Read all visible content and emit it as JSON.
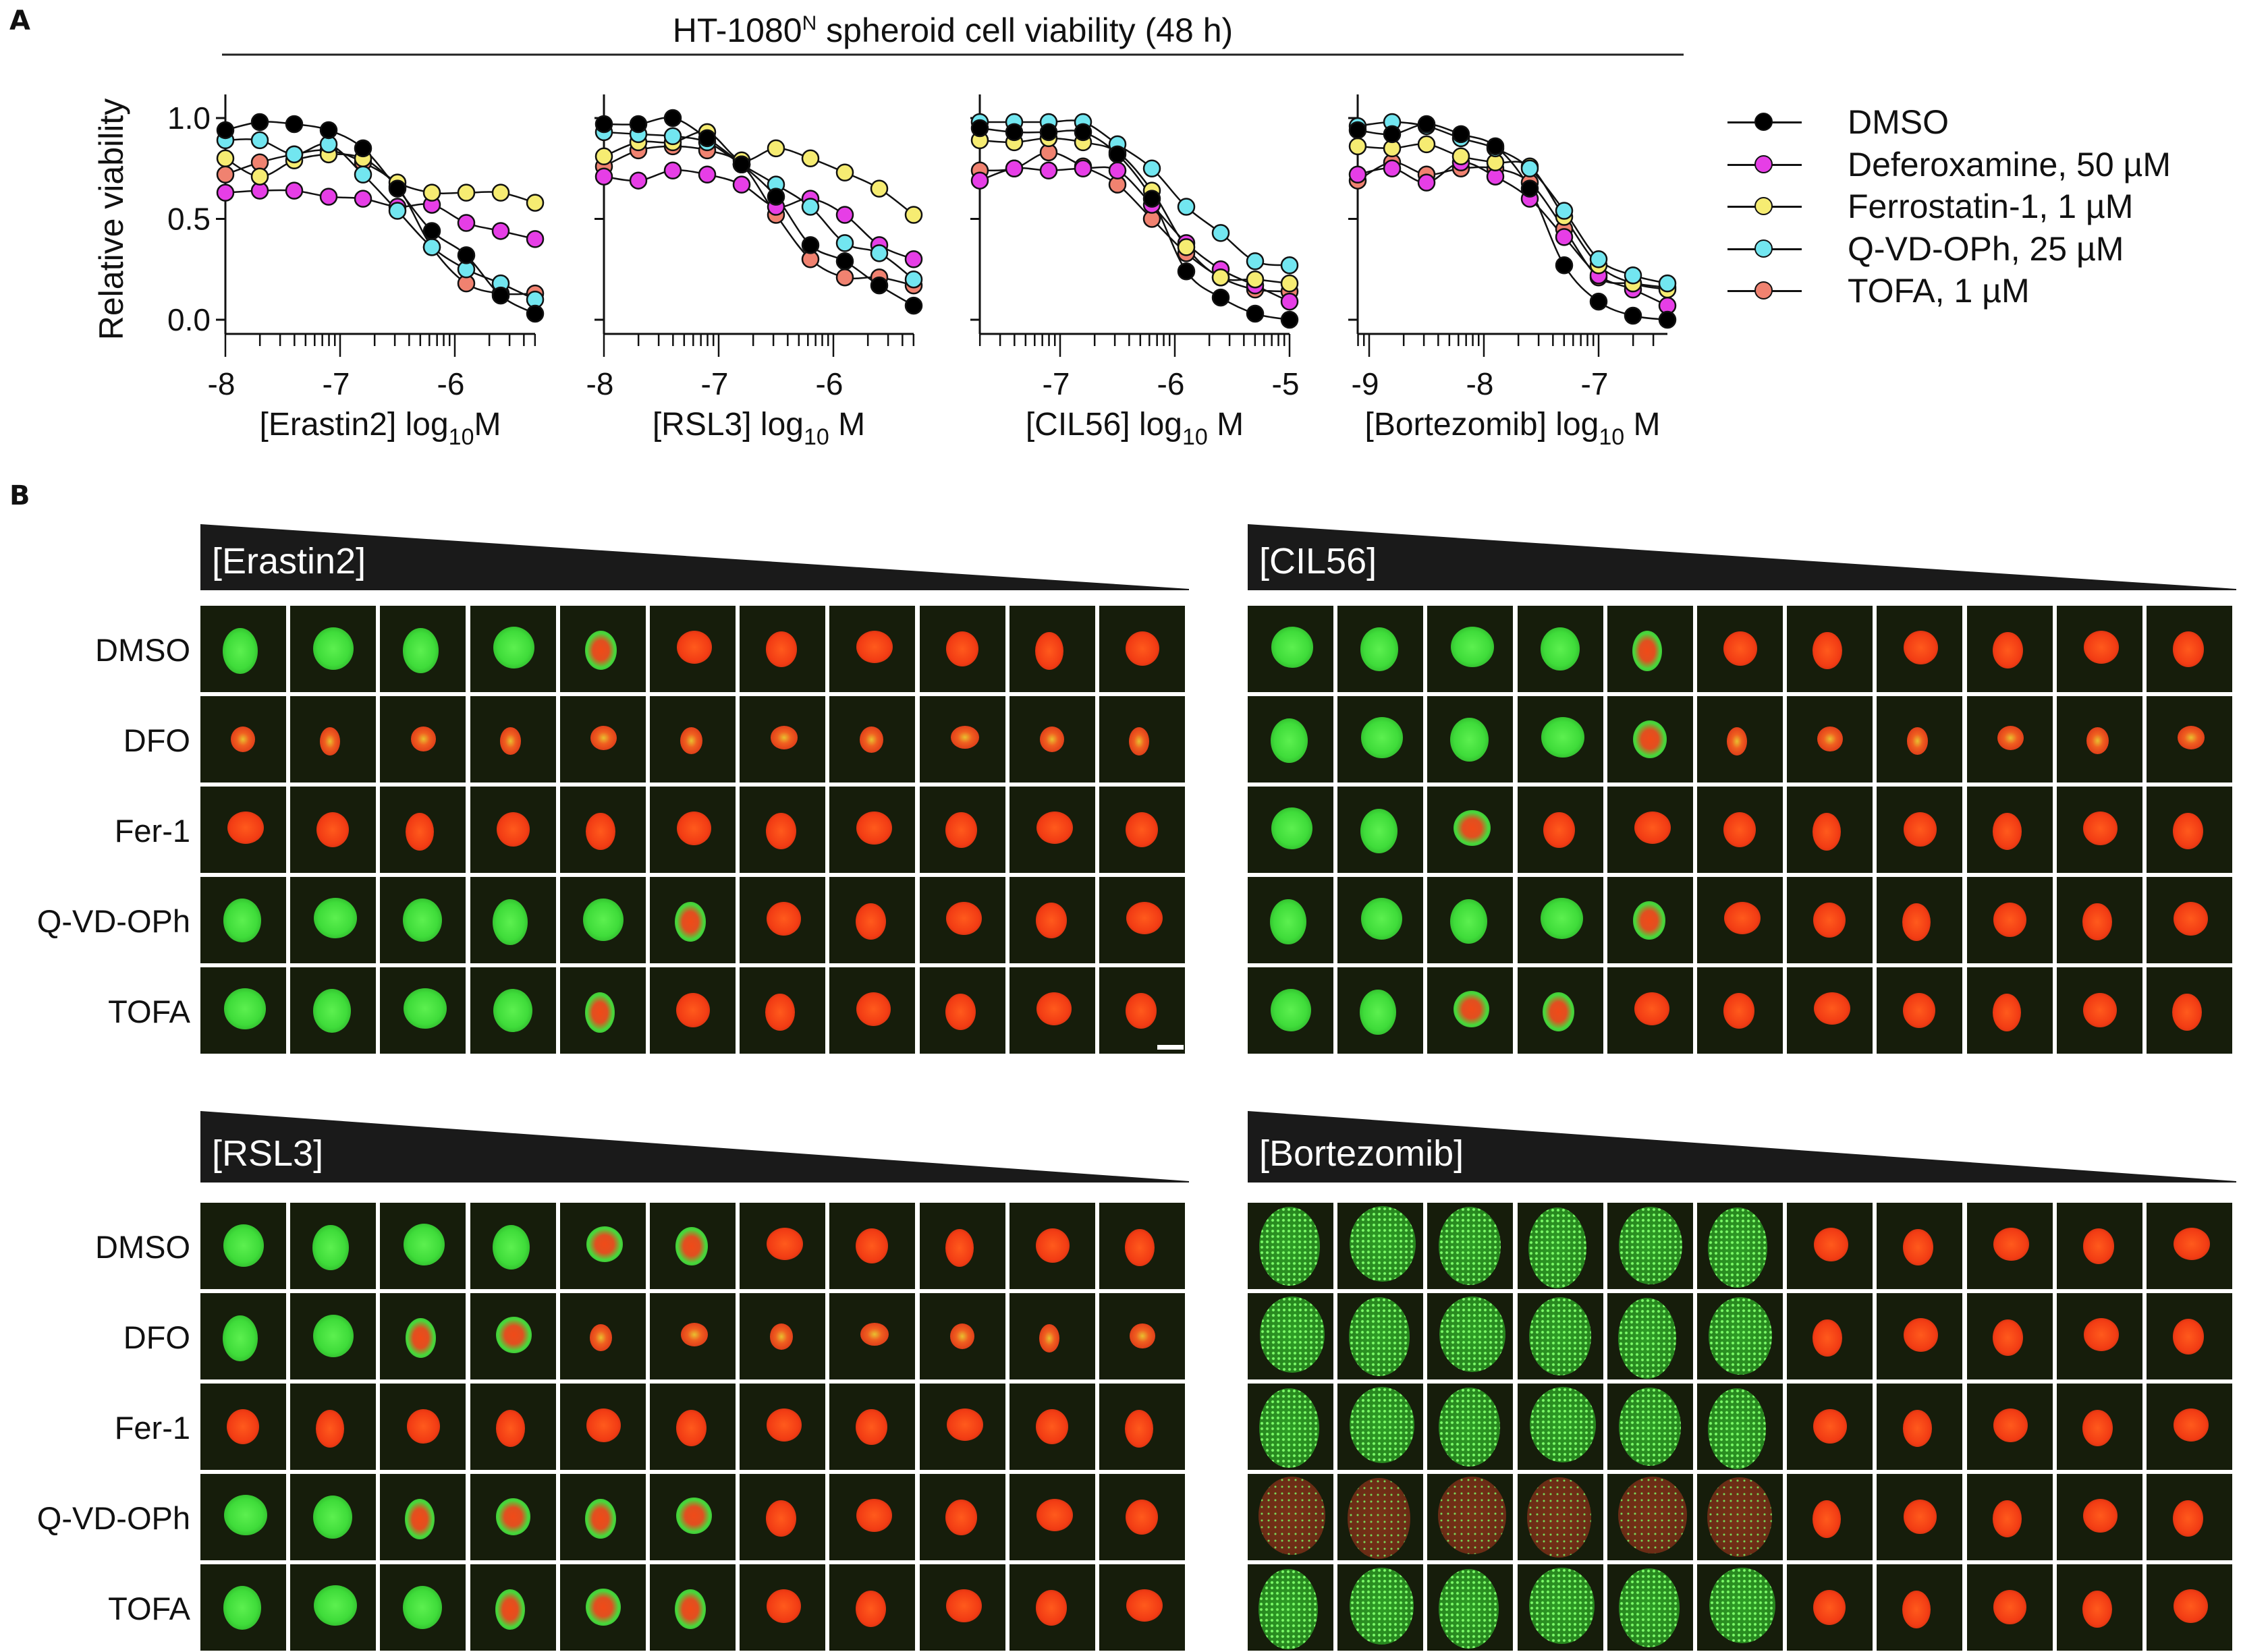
{
  "panel_a": {
    "label": "A",
    "title": {
      "pre": "HT-1080",
      "sup": "N",
      "post": " spheroid cell viability (48 h)"
    },
    "ylabel": "Relative viability",
    "yticks": [
      "0.0",
      "0.5",
      "1.0"
    ]
  },
  "legend": [
    {
      "name": "DMSO",
      "color": "#000000"
    },
    {
      "name": "Deferoxamine, 50 µM",
      "color": "#e63ee6"
    },
    {
      "name": "Ferrostatin-1, 1 µM",
      "color": "#f6ec72"
    },
    {
      "name": "Q-VD-OPh, 25 µM",
      "color": "#72e6f0"
    },
    {
      "name": "TOFA, 1 µM",
      "color": "#f08270"
    }
  ],
  "chart_data": [
    {
      "type": "line",
      "xlabel": {
        "main": "[Erastin2] log",
        "sub": "10",
        "unit": "M"
      },
      "ylabel": "Relative viability",
      "xticks": [
        "-8",
        "-7",
        "-6"
      ],
      "ylim": [
        -0.1,
        1.1
      ],
      "x": [
        -8,
        -7.7,
        -7.4,
        -7.1,
        -6.8,
        -6.5,
        -6.2,
        -5.9,
        -5.6,
        -5.3
      ],
      "series": [
        {
          "name": "DMSO",
          "values": [
            0.94,
            0.98,
            0.97,
            0.94,
            0.85,
            0.65,
            0.44,
            0.32,
            0.12,
            0.03
          ]
        },
        {
          "name": "Deferoxamine, 50 µM",
          "values": [
            0.63,
            0.64,
            0.64,
            0.61,
            0.6,
            0.56,
            0.57,
            0.48,
            0.44,
            0.4
          ]
        },
        {
          "name": "Ferrostatin-1, 1 µM",
          "values": [
            0.8,
            0.71,
            0.79,
            0.82,
            0.8,
            0.68,
            0.63,
            0.63,
            0.63,
            0.58
          ]
        },
        {
          "name": "Q-VD-OPh, 25 µM",
          "values": [
            0.89,
            0.89,
            0.82,
            0.87,
            0.72,
            0.54,
            0.36,
            0.25,
            0.18,
            0.1
          ]
        },
        {
          "name": "TOFA, 1 µM",
          "values": [
            0.72,
            0.78,
            0.82,
            0.84,
            0.78,
            0.66,
            0.36,
            0.18,
            0.13,
            0.13
          ]
        }
      ]
    },
    {
      "type": "line",
      "xlabel": {
        "main": "[RSL3] log",
        "sub": "10",
        "unit": " M"
      },
      "xticks": [
        "-8",
        "-7",
        "-6"
      ],
      "ylim": [
        -0.1,
        1.1
      ],
      "x": [
        -8,
        -7.7,
        -7.4,
        -7.1,
        -6.8,
        -6.5,
        -6.2,
        -5.9,
        -5.6,
        -5.3
      ],
      "series": [
        {
          "name": "DMSO",
          "values": [
            0.97,
            0.97,
            1.0,
            0.9,
            0.77,
            0.61,
            0.37,
            0.29,
            0.17,
            0.07
          ]
        },
        {
          "name": "Deferoxamine, 50 µM",
          "values": [
            0.71,
            0.69,
            0.74,
            0.72,
            0.67,
            0.56,
            0.6,
            0.52,
            0.37,
            0.3
          ]
        },
        {
          "name": "Ferrostatin-1, 1 µM",
          "values": [
            0.81,
            0.88,
            0.88,
            0.93,
            0.79,
            0.85,
            0.8,
            0.73,
            0.65,
            0.52
          ]
        },
        {
          "name": "Q-VD-OPh, 25 µM",
          "values": [
            0.93,
            0.92,
            0.91,
            0.88,
            0.77,
            0.67,
            0.56,
            0.38,
            0.33,
            0.2
          ]
        },
        {
          "name": "TOFA, 1 µM",
          "values": [
            0.76,
            0.84,
            0.86,
            0.84,
            0.77,
            0.52,
            0.3,
            0.21,
            0.21,
            0.17
          ]
        }
      ]
    },
    {
      "type": "line",
      "xlabel": {
        "main": "[CIL56] log",
        "sub": "10",
        "unit": " M"
      },
      "xticks": [
        "-7",
        "-6",
        "-5"
      ],
      "ylim": [
        -0.1,
        1.1
      ],
      "x": [
        -7.7,
        -7.4,
        -7.1,
        -6.8,
        -6.5,
        -6.2,
        -5.9,
        -5.6,
        -5.3,
        -5.0
      ],
      "series": [
        {
          "name": "DMSO",
          "values": [
            0.95,
            0.93,
            0.93,
            0.93,
            0.82,
            0.6,
            0.24,
            0.11,
            0.03,
            0.0
          ]
        },
        {
          "name": "Deferoxamine, 50 µM",
          "values": [
            0.69,
            0.75,
            0.74,
            0.75,
            0.74,
            0.57,
            0.38,
            0.25,
            0.17,
            0.09
          ]
        },
        {
          "name": "Ferrostatin-1, 1 µM",
          "values": [
            0.89,
            0.88,
            0.9,
            0.88,
            0.83,
            0.64,
            0.36,
            0.21,
            0.2,
            0.18
          ]
        },
        {
          "name": "Q-VD-OPh, 25 µM",
          "values": [
            0.98,
            0.98,
            0.98,
            0.98,
            0.87,
            0.75,
            0.56,
            0.43,
            0.29,
            0.27
          ]
        },
        {
          "name": "TOFA, 1 µM",
          "values": [
            0.74,
            0.75,
            0.83,
            0.76,
            0.67,
            0.5,
            0.33,
            0.21,
            0.15,
            0.14
          ]
        }
      ]
    },
    {
      "type": "line",
      "xlabel": {
        "main": "[Bortezomib] log",
        "sub": "10",
        "unit": " M"
      },
      "xticks": [
        "-9",
        "-8",
        "-7"
      ],
      "ylim": [
        -0.1,
        1.1
      ],
      "x": [
        -9.1,
        -8.8,
        -8.5,
        -8.2,
        -7.9,
        -7.6,
        -7.3,
        -7.0,
        -6.7,
        -6.4
      ],
      "series": [
        {
          "name": "DMSO",
          "values": [
            0.94,
            0.92,
            0.97,
            0.92,
            0.86,
            0.65,
            0.27,
            0.09,
            0.02,
            0.0
          ]
        },
        {
          "name": "Deferoxamine, 50 µM",
          "values": [
            0.72,
            0.75,
            0.68,
            0.78,
            0.71,
            0.6,
            0.41,
            0.22,
            0.15,
            0.07
          ]
        },
        {
          "name": "Ferrostatin-1, 1 µM",
          "values": [
            0.86,
            0.85,
            0.87,
            0.81,
            0.78,
            0.76,
            0.51,
            0.27,
            0.18,
            0.15
          ]
        },
        {
          "name": "Q-VD-OPh, 25 µM",
          "values": [
            0.96,
            0.98,
            0.96,
            0.9,
            0.85,
            0.75,
            0.54,
            0.3,
            0.22,
            0.18
          ]
        },
        {
          "name": "TOFA, 1 µM",
          "values": [
            0.69,
            0.78,
            0.72,
            0.75,
            0.75,
            0.68,
            0.45,
            0.21,
            0.18,
            0.16
          ]
        }
      ]
    }
  ],
  "panel_b": {
    "label": "B",
    "grids": [
      {
        "title": "[Erastin2]",
        "rows": [
          "DMSO",
          "DFO",
          "Fer-1",
          "Q-VD-OPh",
          "TOFA"
        ]
      },
      {
        "title": "[CIL56]",
        "rows": [
          "DMSO",
          "DFO",
          "Fer-1",
          "Q-VD-OPh",
          "TOFA"
        ]
      },
      {
        "title": "[RSL3]",
        "rows": [
          "DMSO",
          "DFO",
          "Fer-1",
          "Q-VD-OPh",
          "TOFA"
        ]
      },
      {
        "title": "[Bortezomib]",
        "rows": [
          "DMSO",
          "DFO",
          "Fer-1",
          "Q-VD-OPh",
          "TOFA"
        ]
      }
    ]
  }
}
